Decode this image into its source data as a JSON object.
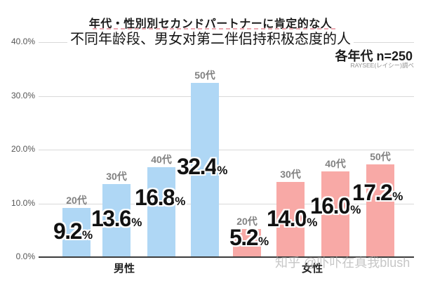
{
  "header": {
    "title": "年代・性別別セカンドパートナーに肯定的な人",
    "subtitle": "不同年龄段、男女对第二伴侣持积极态度的人",
    "sample_note": "各年代 n=250",
    "source_note": "RAYSEE(レイシー)調べ"
  },
  "watermark": "知乎 @卟卟在真我blush",
  "colors": {
    "male_bar": "#AFD7F5",
    "female_bar": "#F8A9A6",
    "title_underline": "#EDA9B2",
    "gridline": "#D9D9D9",
    "axis": "#3C3C3C"
  },
  "chart_data": {
    "type": "bar",
    "title": "年代・性別別セカンドパートナーに肯定的な人",
    "subtitle": "不同年龄段、男女对第二伴侣持积极态度的人",
    "xlabel": "",
    "ylabel": "",
    "ylim": [
      0,
      40
    ],
    "yticks": [
      40,
      30,
      20,
      10,
      0
    ],
    "ytick_suffix": "%",
    "grid": true,
    "legend": "none",
    "value_label_suffix": "%",
    "groups": [
      {
        "key": "male",
        "label": "男性",
        "color": "#AFD7F5",
        "categories": [
          "20代",
          "30代",
          "40代",
          "50代"
        ],
        "values": [
          9.2,
          13.6,
          16.8,
          32.4
        ]
      },
      {
        "key": "female",
        "label": "女性",
        "color": "#F8A9A6",
        "categories": [
          "20代",
          "30代",
          "40代",
          "50代"
        ],
        "values": [
          5.2,
          14.0,
          16.0,
          17.2
        ]
      }
    ]
  }
}
